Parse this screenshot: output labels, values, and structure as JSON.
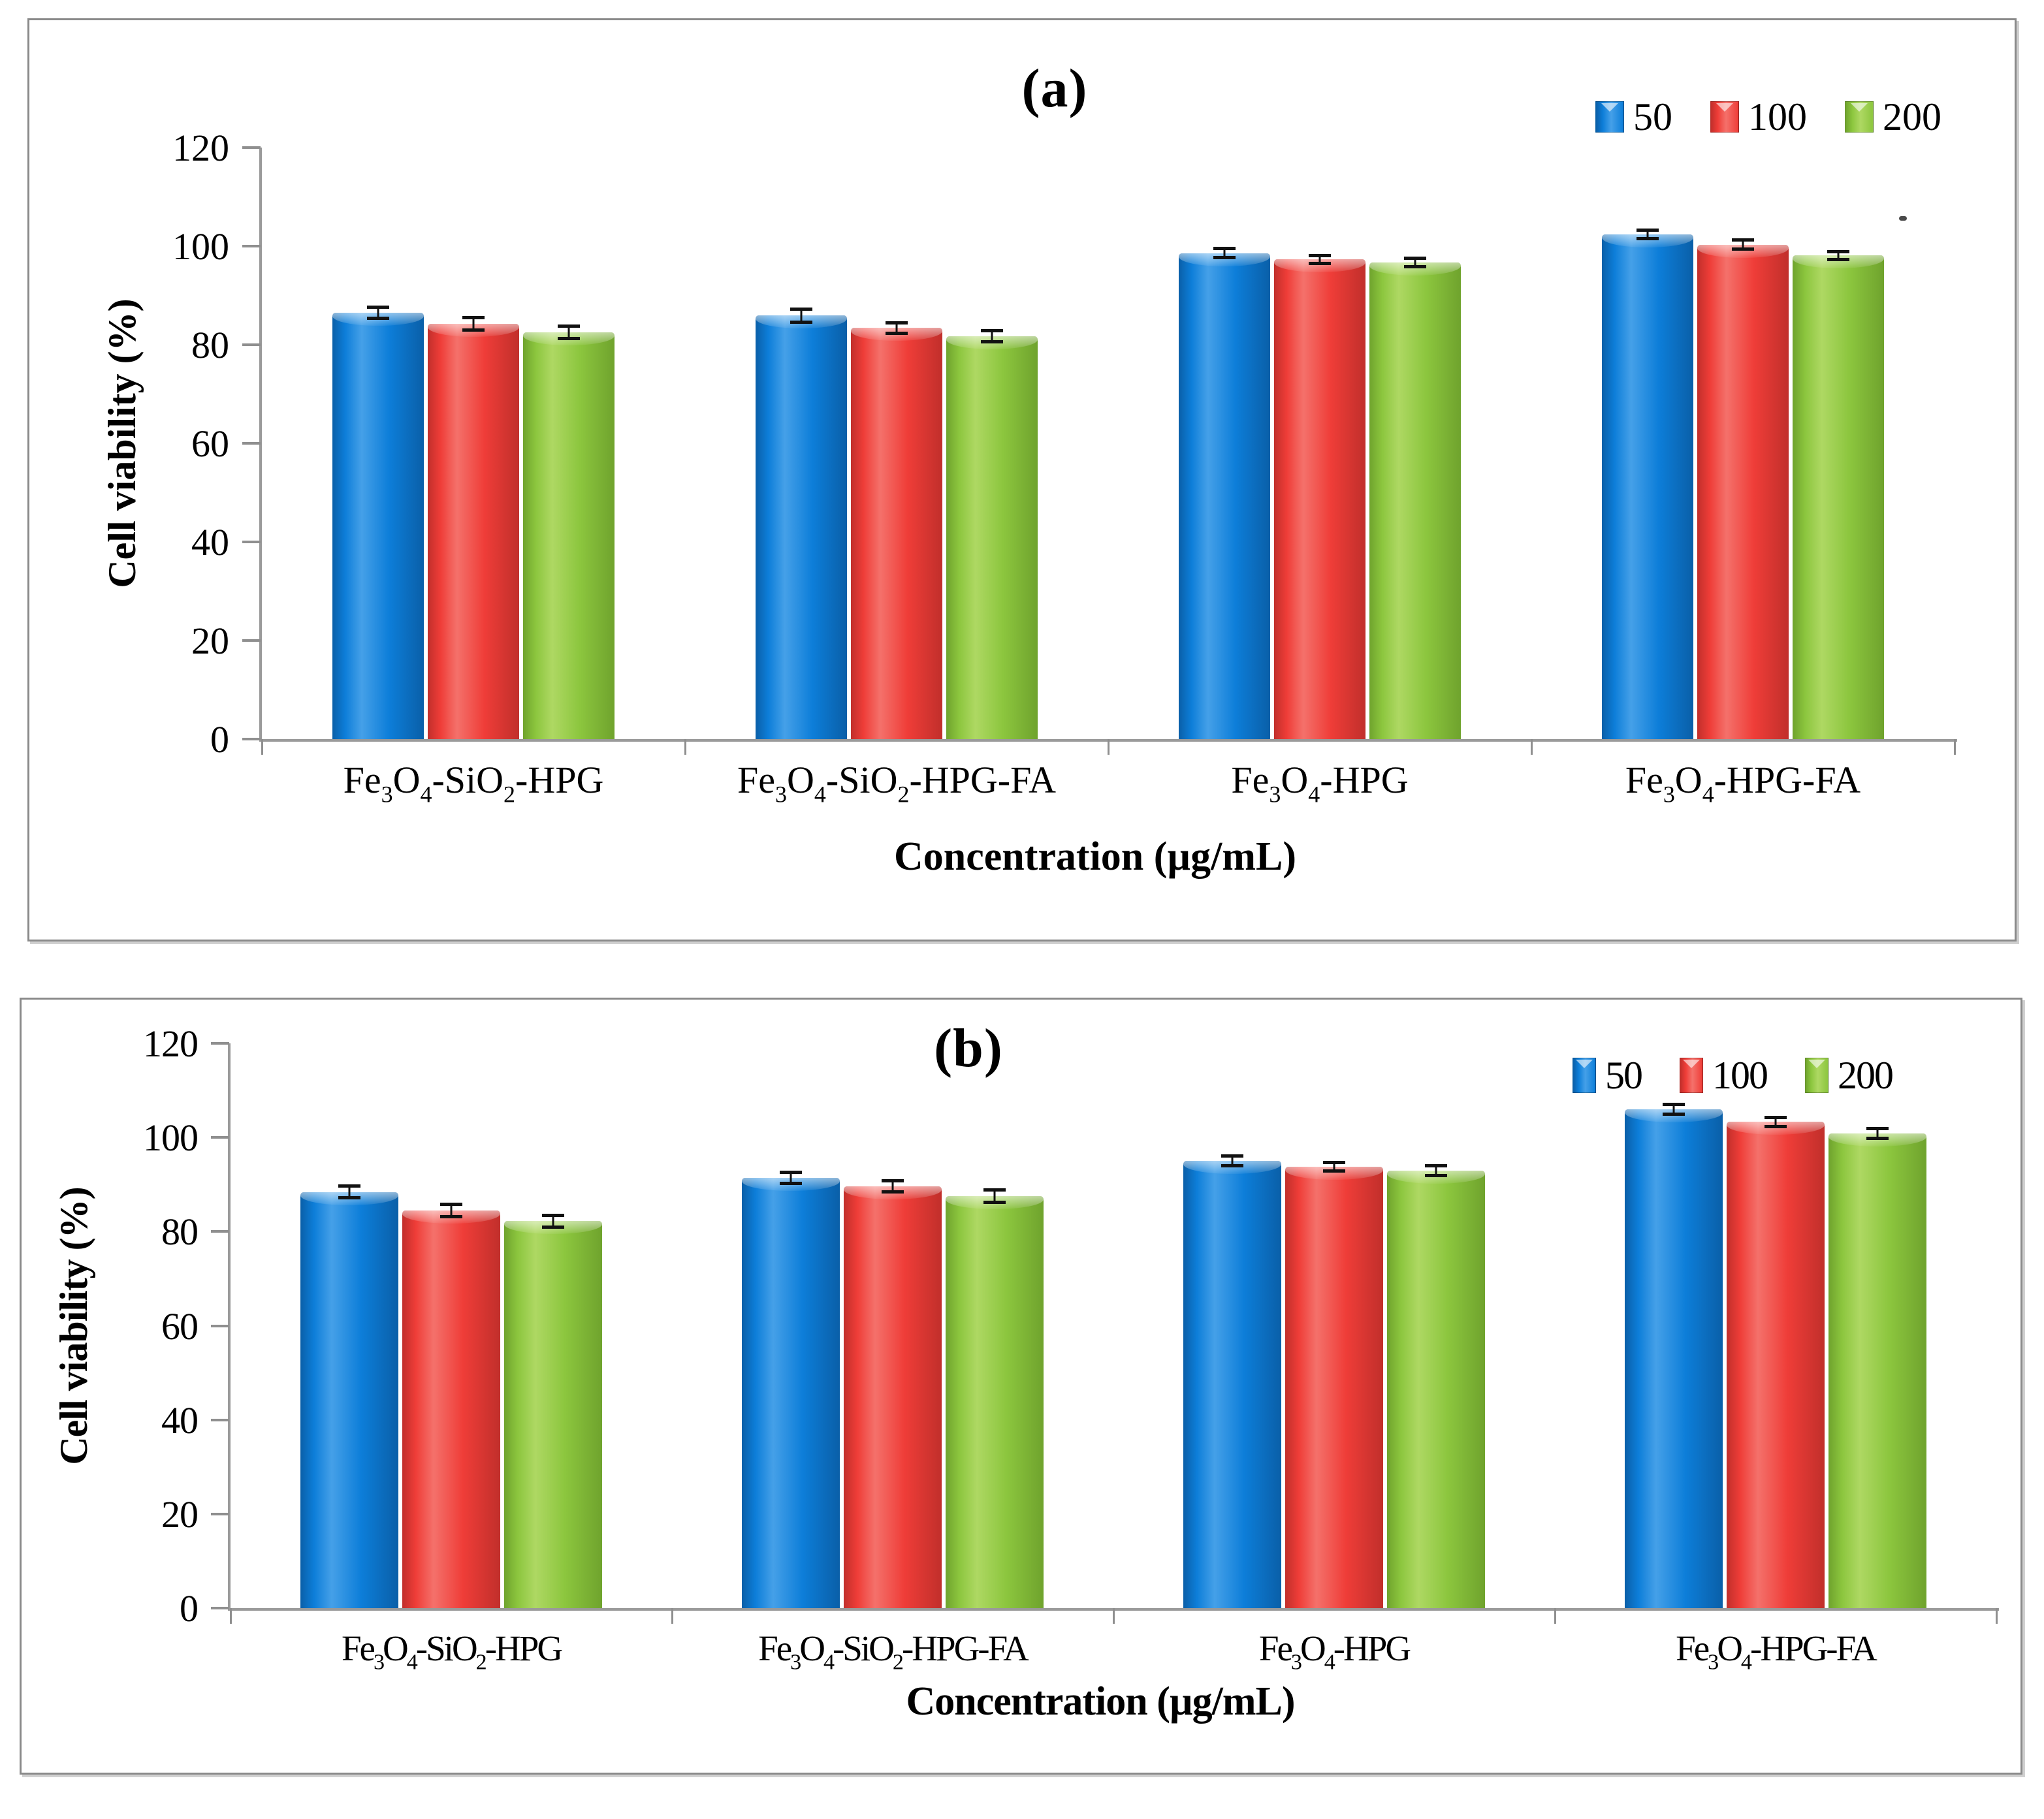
{
  "figure": {
    "background": "#ffffff",
    "panel_border_color": "#8a8a8a",
    "axis_color": "#9a9a9a",
    "error_bar_color": "#111111"
  },
  "chart_data": [
    {
      "type": "bar",
      "title": "(a)",
      "ylabel": "Cell viability  (%)",
      "xlabel": "Concentration (µg/mL)",
      "ylim": [
        0,
        120
      ],
      "yticks": [
        0,
        20,
        40,
        60,
        80,
        100,
        120
      ],
      "grid": false,
      "legend_position": "top-right",
      "categories": [
        "Fe3O4-SiO2-HPG",
        "Fe3O4-SiO2-HPG-FA",
        "Fe3O4-HPG",
        "Fe3O4-HPG-FA"
      ],
      "series": [
        {
          "name": "50",
          "color": "#0d7ed9",
          "edge": "#0a5fa8",
          "light": "#45a0e8",
          "values": [
            86.5,
            85.9,
            98.6,
            102.4
          ],
          "errors": [
            0.8,
            1.0,
            0.6,
            0.5
          ]
        },
        {
          "name": "100",
          "color": "#ef3d38",
          "edge": "#c12f2b",
          "light": "#f4716b",
          "values": [
            84.2,
            83.4,
            97.3,
            100.3
          ],
          "errors": [
            0.9,
            0.7,
            0.5,
            0.6
          ]
        },
        {
          "name": "200",
          "color": "#8cc63e",
          "edge": "#6fa32d",
          "light": "#aed863",
          "values": [
            82.5,
            81.7,
            96.7,
            98.1
          ],
          "errors": [
            0.9,
            0.8,
            0.5,
            0.5
          ]
        }
      ]
    },
    {
      "type": "bar",
      "title": "(b)",
      "ylabel": "Cell viability (%)",
      "xlabel": "Concentration  (µg/mL)",
      "ylim": [
        0,
        120
      ],
      "yticks": [
        0,
        20,
        40,
        60,
        80,
        100,
        120
      ],
      "grid": false,
      "legend_position": "top-right",
      "categories": [
        "Fe3O4-SiO2-HPG",
        "Fe3O4-SiO2-HPG-FA",
        "Fe3O4-HPG",
        "Fe3O4-HPG-FA"
      ],
      "series": [
        {
          "name": "50",
          "color": "#0d7ed9",
          "edge": "#0a5fa8",
          "light": "#45a0e8",
          "values": [
            88.4,
            91.4,
            95.0,
            106.0
          ],
          "errors": [
            0.9,
            0.8,
            0.7,
            0.7
          ]
        },
        {
          "name": "100",
          "color": "#ef3d38",
          "edge": "#c12f2b",
          "light": "#f4716b",
          "values": [
            84.5,
            89.6,
            93.8,
            103.3
          ],
          "errors": [
            1.0,
            0.8,
            0.6,
            0.6
          ]
        },
        {
          "name": "200",
          "color": "#8cc63e",
          "edge": "#6fa32d",
          "light": "#aed863",
          "values": [
            82.2,
            87.5,
            92.9,
            100.9
          ],
          "errors": [
            0.9,
            1.0,
            0.7,
            0.7
          ]
        }
      ]
    }
  ]
}
